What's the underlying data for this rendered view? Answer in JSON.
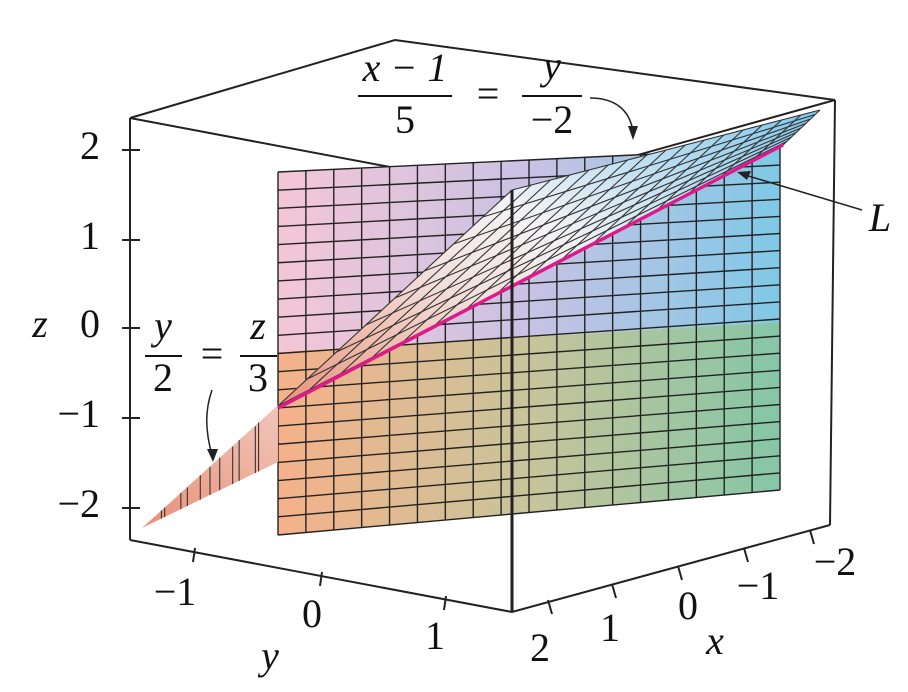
{
  "axes": {
    "z": {
      "label": "z",
      "ticks": [
        "2",
        "1",
        "0",
        "−1",
        "−2"
      ]
    },
    "y": {
      "label": "y",
      "ticks": [
        "−1",
        "0",
        "1"
      ]
    },
    "x": {
      "label": "x",
      "ticks": [
        "2",
        "1",
        "0",
        "−1",
        "−2"
      ]
    }
  },
  "annotations": {
    "plane_vertical": {
      "left_numerator": "x − 1",
      "left_denominator": "5",
      "equals": "=",
      "right_numerator": "y",
      "right_denominator": "−2"
    },
    "plane_sloped": {
      "left_numerator": "y",
      "left_denominator": "2",
      "equals": "=",
      "right_numerator": "z",
      "right_denominator": "3"
    },
    "line": "L"
  }
}
